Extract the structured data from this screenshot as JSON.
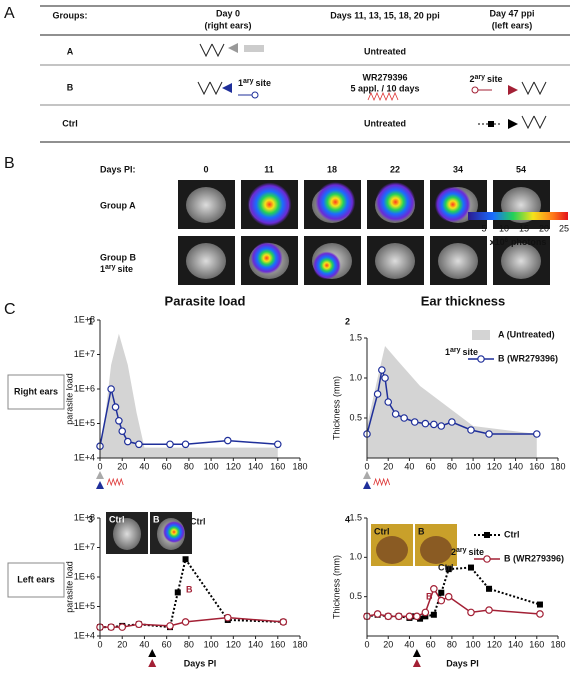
{
  "panel_labels": [
    "A",
    "B",
    "C"
  ],
  "table": {
    "header": {
      "groups": "Groups:",
      "day0": "Day 0",
      "day0_note": "(right ears)",
      "days_mid": "Days 11, 13, 15, 18, 20 ppi",
      "day47": "Day 47 ppi",
      "day47_note": "(left ears)"
    },
    "rows": [
      {
        "group": "A",
        "treatment": "Untreated"
      },
      {
        "group": "B",
        "site": {
          "num": "1",
          "sup": "ary",
          "word": "site"
        },
        "treatment": "WR279396",
        "regimen": "5 appl. / 10 days",
        "site2": {
          "num": "2",
          "sup": "ary",
          "word": "site"
        }
      },
      {
        "group": "Ctrl",
        "treatment": "Untreated"
      }
    ]
  },
  "imaging": {
    "days_label": "Days PI:",
    "days": [
      0,
      11,
      18,
      22,
      34,
      54
    ],
    "rows": [
      "Group A",
      "Group B"
    ],
    "row_note": {
      "num": "1",
      "sup": "ary",
      "word": "site"
    },
    "colorbar": {
      "ticks": [
        5,
        10,
        15,
        20,
        25
      ],
      "unit": {
        "base": "x10",
        "exp": "6",
        "word": "photons"
      }
    }
  },
  "section_titles": [
    "Parasite load",
    "Ear thickness"
  ],
  "row_labels": [
    "Right ears",
    "Left ears"
  ],
  "chart_data": [
    {
      "type": "line",
      "panel": "1",
      "ylabel": "parasite load",
      "log": true,
      "xlim": [
        0,
        180
      ],
      "xticks": [
        0,
        20,
        40,
        60,
        80,
        100,
        120,
        140,
        160,
        180
      ],
      "ylim": [
        10000,
        100000000
      ],
      "yticks": [
        {
          "value": 10000,
          "label": "1E+4"
        },
        {
          "value": 100000,
          "label": "1E+5"
        },
        {
          "value": 1000000,
          "label": "1E+6"
        },
        {
          "value": 10000000,
          "label": "1E+7"
        },
        {
          "value": 100000000,
          "label": "1E+8"
        }
      ],
      "series": [
        {
          "fill": true,
          "color": "#d4d4d4",
          "x": [
            0,
            5,
            10,
            17,
            25,
            33,
            40,
            160
          ],
          "values": [
            20000,
            200000,
            5000000,
            40000000,
            5000000,
            200000,
            20000,
            20000
          ]
        },
        {
          "marker": "circle",
          "color": "#1f2f9a",
          "x": [
            0,
            10,
            14,
            17,
            20,
            25,
            35,
            63,
            77,
            115,
            160
          ],
          "values": [
            22000,
            1000000,
            300000,
            120000,
            60000,
            30000,
            25000,
            25000,
            25000,
            32000,
            25000
          ]
        }
      ]
    },
    {
      "type": "line",
      "panel": "2",
      "ylabel": "Thickness  (mm)",
      "log": false,
      "xlim": [
        0,
        180
      ],
      "xticks": [
        0,
        20,
        40,
        60,
        80,
        100,
        120,
        140,
        160,
        180
      ],
      "ylim": [
        0,
        1.5
      ],
      "yticks": [
        {
          "value": 0.5,
          "label": "0.5"
        },
        {
          "value": 1,
          "label": "1.0"
        },
        {
          "value": 1.5,
          "label": "1.5"
        }
      ],
      "legend": true,
      "series": [
        {
          "name": "A (Untreated)",
          "fill": true,
          "color": "#d4d4d4",
          "x": [
            0,
            10,
            17,
            30,
            50,
            80,
            100,
            160
          ],
          "values": [
            0.4,
            1.0,
            1.4,
            1.2,
            0.9,
            0.6,
            0.4,
            0.3
          ]
        },
        {
          "name": "B (WR279396)",
          "prefix": {
            "num": "1",
            "sup": "ary",
            "word": "site"
          },
          "marker": "circle",
          "color": "#1f2f9a",
          "x": [
            0,
            10,
            14,
            17,
            20,
            27,
            35,
            45,
            55,
            63,
            70,
            80,
            98,
            115,
            160
          ],
          "values": [
            0.3,
            0.8,
            1.1,
            1.0,
            0.7,
            0.55,
            0.5,
            0.45,
            0.43,
            0.42,
            0.4,
            0.45,
            0.35,
            0.3,
            0.3
          ]
        }
      ]
    },
    {
      "type": "line",
      "panel": "3",
      "ylabel": "parasite load",
      "xlabel": "Days PI",
      "log": true,
      "insets": [
        "Ctrl",
        "B"
      ],
      "xlim": [
        0,
        180
      ],
      "xticks": [
        0,
        20,
        40,
        60,
        80,
        100,
        120,
        140,
        160,
        180
      ],
      "ylim": [
        10000,
        100000000
      ],
      "yticks": [
        {
          "value": 10000,
          "label": "1E+4"
        },
        {
          "value": 100000,
          "label": "1E+5"
        },
        {
          "value": 1000000,
          "label": "1E+6"
        },
        {
          "value": 10000000,
          "label": "1E+7"
        },
        {
          "value": 100000000,
          "label": "1E+8"
        }
      ],
      "series": [
        {
          "label": "Ctrl",
          "marker": "square",
          "dash": true,
          "color": "#000000",
          "x": [
            0,
            10,
            20,
            35,
            63,
            70,
            77,
            115,
            165
          ],
          "values": [
            20000,
            20000,
            22000,
            25000,
            20000,
            300000,
            4000000,
            35000,
            30000
          ]
        },
        {
          "label": "B",
          "marker": "circle",
          "color": "#a32035",
          "x": [
            0,
            10,
            20,
            35,
            63,
            77,
            115,
            165
          ],
          "values": [
            20000,
            20000,
            20000,
            25000,
            22000,
            30000,
            42000,
            30000
          ]
        }
      ]
    },
    {
      "type": "line",
      "panel": "4",
      "ylabel": "Thickness  (mm)",
      "xlabel": "Days PI",
      "log": false,
      "insets": [
        "Ctrl",
        "B"
      ],
      "xlim": [
        0,
        180
      ],
      "xticks": [
        0,
        20,
        40,
        60,
        80,
        100,
        120,
        140,
        160,
        180
      ],
      "ylim": [
        0,
        1.5
      ],
      "yticks": [
        {
          "value": 0.5,
          "label": "0.5"
        },
        {
          "value": 1,
          "label": "1.0"
        },
        {
          "value": 1.5,
          "label": "1.5"
        }
      ],
      "legend": true,
      "series": [
        {
          "name": "Ctrl",
          "label": "Ctrl",
          "marker": "square",
          "dash": true,
          "color": "#000000",
          "x": [
            0,
            10,
            20,
            30,
            40,
            45,
            50,
            55,
            63,
            70,
            77,
            98,
            115,
            163
          ],
          "values": [
            0.25,
            0.27,
            0.25,
            0.25,
            0.23,
            0.25,
            0.22,
            0.25,
            0.27,
            0.55,
            0.85,
            0.87,
            0.6,
            0.4
          ]
        },
        {
          "name": "B (WR279396)",
          "label": "B",
          "prefix": {
            "num": "2",
            "sup": "ary",
            "word": "site"
          },
          "marker": "circle",
          "color": "#a32035",
          "x": [
            0,
            10,
            20,
            30,
            40,
            47,
            55,
            63,
            70,
            77,
            98,
            115,
            163
          ],
          "values": [
            0.25,
            0.28,
            0.25,
            0.25,
            0.25,
            0.25,
            0.3,
            0.6,
            0.45,
            0.5,
            0.3,
            0.33,
            0.28
          ]
        }
      ]
    }
  ]
}
